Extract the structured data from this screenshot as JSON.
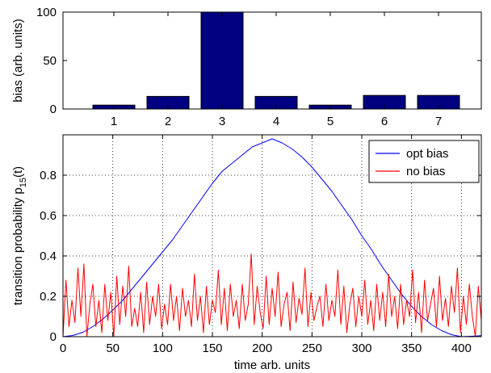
{
  "chart_data": [
    {
      "type": "bar",
      "categories": [
        "1",
        "2",
        "3",
        "4",
        "5",
        "6",
        "7"
      ],
      "values": [
        4,
        13,
        100,
        13,
        4,
        14,
        14
      ],
      "ylabel": "bias (arb. units)",
      "xlabel": "",
      "ylim": [
        0,
        100
      ],
      "yticks": [
        "0",
        "50",
        "100"
      ],
      "grid": false,
      "bar_color": "#000080"
    },
    {
      "type": "line",
      "xlabel": "time arb. units",
      "ylabel": "transition probability p",
      "ylabel_sub": "15",
      "ylabel_suffix": "(t)",
      "xlim": [
        0,
        420
      ],
      "ylim": [
        0,
        1
      ],
      "xticks": [
        "0",
        "50",
        "100",
        "150",
        "200",
        "250",
        "300",
        "350",
        "400"
      ],
      "yticks": [
        "0",
        "0.2",
        "0.4",
        "0.6",
        "0.8"
      ],
      "grid": true,
      "legend_position": "top-right",
      "series": [
        {
          "name": "opt bias",
          "color": "#0000ff",
          "x": [
            0,
            10,
            20,
            30,
            40,
            50,
            60,
            70,
            80,
            90,
            100,
            110,
            120,
            130,
            140,
            150,
            160,
            170,
            180,
            190,
            200,
            210,
            220,
            230,
            240,
            250,
            260,
            270,
            280,
            290,
            300,
            310,
            320,
            330,
            340,
            350,
            360,
            370,
            380,
            390,
            400,
            410,
            420
          ],
          "y": [
            0.0,
            0.006,
            0.022,
            0.05,
            0.087,
            0.132,
            0.18,
            0.24,
            0.3,
            0.36,
            0.42,
            0.48,
            0.55,
            0.62,
            0.69,
            0.76,
            0.82,
            0.86,
            0.9,
            0.94,
            0.96,
            0.98,
            0.96,
            0.93,
            0.89,
            0.84,
            0.78,
            0.72,
            0.65,
            0.58,
            0.5,
            0.43,
            0.35,
            0.28,
            0.21,
            0.15,
            0.1,
            0.06,
            0.03,
            0.01,
            0.0,
            0.002,
            0.005
          ]
        },
        {
          "name": "no bias",
          "color": "#ff0000",
          "x": [
            0,
            3,
            6,
            9,
            12,
            15,
            18,
            21,
            24,
            27,
            30,
            33,
            36,
            39,
            42,
            45,
            48,
            51,
            54,
            57,
            60,
            63,
            66,
            69,
            72,
            75,
            78,
            81,
            84,
            87,
            90,
            93,
            96,
            99,
            102,
            105,
            108,
            111,
            114,
            117,
            120,
            123,
            126,
            129,
            132,
            135,
            138,
            141,
            144,
            147,
            150,
            153,
            156,
            159,
            162,
            165,
            168,
            171,
            174,
            177,
            180,
            183,
            186,
            189,
            192,
            195,
            198,
            201,
            204,
            207,
            210,
            213,
            216,
            219,
            222,
            225,
            228,
            231,
            234,
            237,
            240,
            243,
            246,
            249,
            252,
            255,
            258,
            261,
            264,
            267,
            270,
            273,
            276,
            279,
            282,
            285,
            288,
            291,
            294,
            297,
            300,
            303,
            306,
            309,
            312,
            315,
            318,
            321,
            324,
            327,
            330,
            333,
            336,
            339,
            342,
            345,
            348,
            351,
            354,
            357,
            360,
            363,
            366,
            369,
            372,
            375,
            378,
            381,
            384,
            387,
            390,
            393,
            396,
            399,
            402,
            405,
            408,
            411,
            414,
            417,
            420
          ],
          "y": [
            0.0,
            0.28,
            0.05,
            0.18,
            0.07,
            0.34,
            0.1,
            0.36,
            0.0,
            0.16,
            0.26,
            0.05,
            0.18,
            0.02,
            0.26,
            0.08,
            0.22,
            0.0,
            0.3,
            0.06,
            0.25,
            0.1,
            0.35,
            0.05,
            0.14,
            0.05,
            0.22,
            0.02,
            0.27,
            0.06,
            0.2,
            0.1,
            0.26,
            0.04,
            0.16,
            0.06,
            0.26,
            0.08,
            0.2,
            0.03,
            0.24,
            0.1,
            0.18,
            0.05,
            0.31,
            0.08,
            0.2,
            0.02,
            0.25,
            0.06,
            0.18,
            0.12,
            0.33,
            0.06,
            0.24,
            0.03,
            0.26,
            0.1,
            0.18,
            0.04,
            0.26,
            0.08,
            0.16,
            0.41,
            0.06,
            0.25,
            0.12,
            0.04,
            0.3,
            0.06,
            0.24,
            0.1,
            0.32,
            0.05,
            0.16,
            0.22,
            0.03,
            0.27,
            0.07,
            0.19,
            0.11,
            0.34,
            0.05,
            0.22,
            0.08,
            0.15,
            0.2,
            0.05,
            0.26,
            0.08,
            0.18,
            0.1,
            0.33,
            0.06,
            0.25,
            0.02,
            0.16,
            0.24,
            0.05,
            0.2,
            0.1,
            0.28,
            0.06,
            0.18,
            0.03,
            0.26,
            0.08,
            0.22,
            0.05,
            0.31,
            0.1,
            0.2,
            0.04,
            0.26,
            0.06,
            0.18,
            0.1,
            0.33,
            0.07,
            0.22,
            0.02,
            0.28,
            0.08,
            0.16,
            0.24,
            0.05,
            0.3,
            0.08,
            0.19,
            0.05,
            0.25,
            0.12,
            0.34,
            0.02,
            0.2,
            0.06,
            0.26,
            0.1,
            0.0,
            0.25,
            0.08
          ]
        }
      ]
    }
  ]
}
